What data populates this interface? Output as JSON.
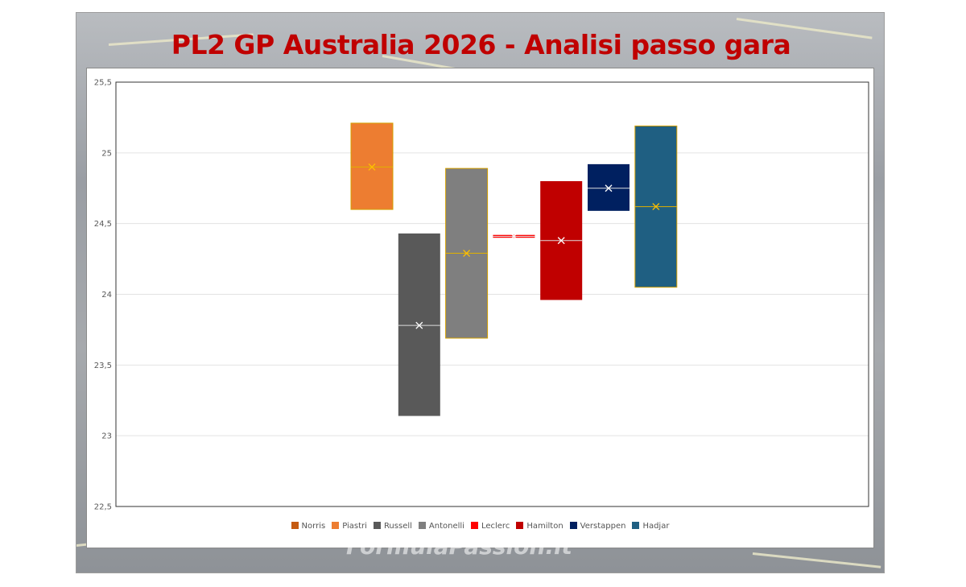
{
  "title": "PL2 GP Australia 2026 - Analisi passo gara",
  "watermark": "FormulaPassion.it",
  "chart_data": {
    "type": "box",
    "title": "PL2 GP Australia 2026 - Analisi passo gara",
    "xlabel": "",
    "ylabel": "",
    "ylim": [
      22.5,
      25.5
    ],
    "yticks": [
      "22,5",
      "23",
      "23,5",
      "24",
      "24,5",
      "25",
      "25,5"
    ],
    "ytick_values": [
      22.5,
      23,
      23.5,
      24,
      24.5,
      25,
      25.5
    ],
    "grid": true,
    "legend_position": "bottom",
    "series": [
      {
        "name": "Norris",
        "color": "#c55a11",
        "low": null,
        "high": null,
        "mean": null,
        "median": null
      },
      {
        "name": "Piastri",
        "color": "#ed7d31",
        "low": 24.6,
        "high": 25.21,
        "mean": 24.9,
        "median": 24.9,
        "marker_color": "#ffc000"
      },
      {
        "name": "Russell",
        "color": "#595959",
        "low": 23.14,
        "high": 24.43,
        "mean": 23.78,
        "median": 23.78,
        "marker_color": "#ffffff"
      },
      {
        "name": "Antonelli",
        "color": "#7f7f7f",
        "low": 23.69,
        "high": 24.89,
        "mean": 24.29,
        "median": 24.29,
        "marker_color": "#ffc000"
      },
      {
        "name": "Leclerc",
        "color": "#ff0000",
        "low": 24.4,
        "high": 24.42,
        "mean": 24.41,
        "median": 24.41,
        "marker_color": "#ffffff"
      },
      {
        "name": "Hamilton",
        "color": "#c00000",
        "low": 23.96,
        "high": 24.8,
        "mean": 24.38,
        "median": 24.38,
        "marker_color": "#ffffff"
      },
      {
        "name": "Verstappen",
        "color": "#002060",
        "low": 24.59,
        "high": 24.92,
        "mean": 24.75,
        "median": 24.75,
        "marker_color": "#ffffff"
      },
      {
        "name": "Hadjar",
        "color": "#1f5f82",
        "low": 24.05,
        "high": 25.19,
        "mean": 24.62,
        "median": 24.62,
        "marker_color": "#ffc000"
      }
    ]
  }
}
